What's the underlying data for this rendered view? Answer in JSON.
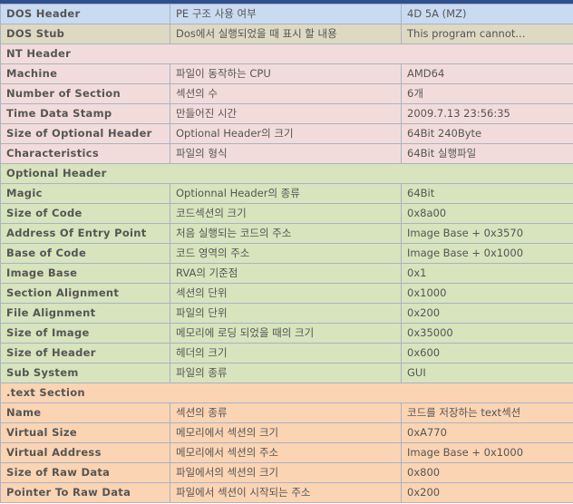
{
  "colors": {
    "blue": "#c9dbf0",
    "tan": "#ddd9c3",
    "pink": "#f2dcdb",
    "green": "#d7e4bd",
    "orange": "#fbd4b4",
    "border": "#a9b3c2",
    "text": "#555555"
  },
  "rows": [
    {
      "name": "DOS Header",
      "desc": "PE 구조 사용 여부",
      "value": "4D 5A (MZ)"
    },
    {
      "name": "DOS Stub",
      "desc": "Dos에서 실행되었을 때 표시 할 내용",
      "value": "This program cannot..."
    },
    {
      "section": "NT Header"
    },
    {
      "name": "Machine",
      "desc": "파일이 동작하는 CPU",
      "value": "AMD64"
    },
    {
      "name": "Number of Section",
      "desc": "섹션의 수",
      "value": "6개"
    },
    {
      "name": "Time Data Stamp",
      "desc": "만들어진 시간",
      "value": "2009.7.13 23:56:35"
    },
    {
      "name": "Size of Optional Header",
      "desc": "Optional Header의 크기",
      "value": "64Bit 240Byte"
    },
    {
      "name": "Characteristics",
      "desc": "파일의 형식",
      "value": "64Bit 실행파일"
    },
    {
      "section": "Optional Header"
    },
    {
      "name": "Magic",
      "desc": "Optionnal Header의 종류",
      "value": "64Bit"
    },
    {
      "name": "Size of Code",
      "desc": "코드섹션의 크기",
      "value": "0x8a00"
    },
    {
      "name": "Address Of Entry Point",
      "desc": "처음 실행되는 코드의 주소",
      "value": "Image Base + 0x3570"
    },
    {
      "name": "Base of Code",
      "desc": "코드 영역의 주소",
      "value": "Image Base + 0x1000"
    },
    {
      "name": "Image Base",
      "desc": "RVA의 기준점",
      "value": "0x1"
    },
    {
      "name": "Section Alignment",
      "desc": "섹션의 단위",
      "value": "0x1000"
    },
    {
      "name": "File Alignment",
      "desc": "파일의 단위",
      "value": "0x200"
    },
    {
      "name": "Size of Image",
      "desc": "메모리에 로딩 되었을 때의 크기",
      "value": "0x35000"
    },
    {
      "name": "Size of Header",
      "desc": "헤더의 크기",
      "value": "0x600"
    },
    {
      "name": "Sub System",
      "desc": "파일의 종류",
      "value": "GUI"
    },
    {
      "section": ".text Section"
    },
    {
      "name": "Name",
      "desc": "섹션의 종류",
      "value": "코드를 저장하는 text섹션"
    },
    {
      "name": "Virtual Size",
      "desc": "메모리에서 섹션의 크기",
      "value": "0xA770"
    },
    {
      "name": "Virtual Address",
      "desc": "메모리에서 섹션의 주소",
      "value": "Image Base + 0x1000"
    },
    {
      "name": "Size of Raw Data",
      "desc": "파일에서의 섹션의 크기",
      "value": "0x800"
    },
    {
      "name": "Pointer To Raw Data",
      "desc": "파일에서 섹션이 시작되는 주소",
      "value": "0x200"
    }
  ]
}
